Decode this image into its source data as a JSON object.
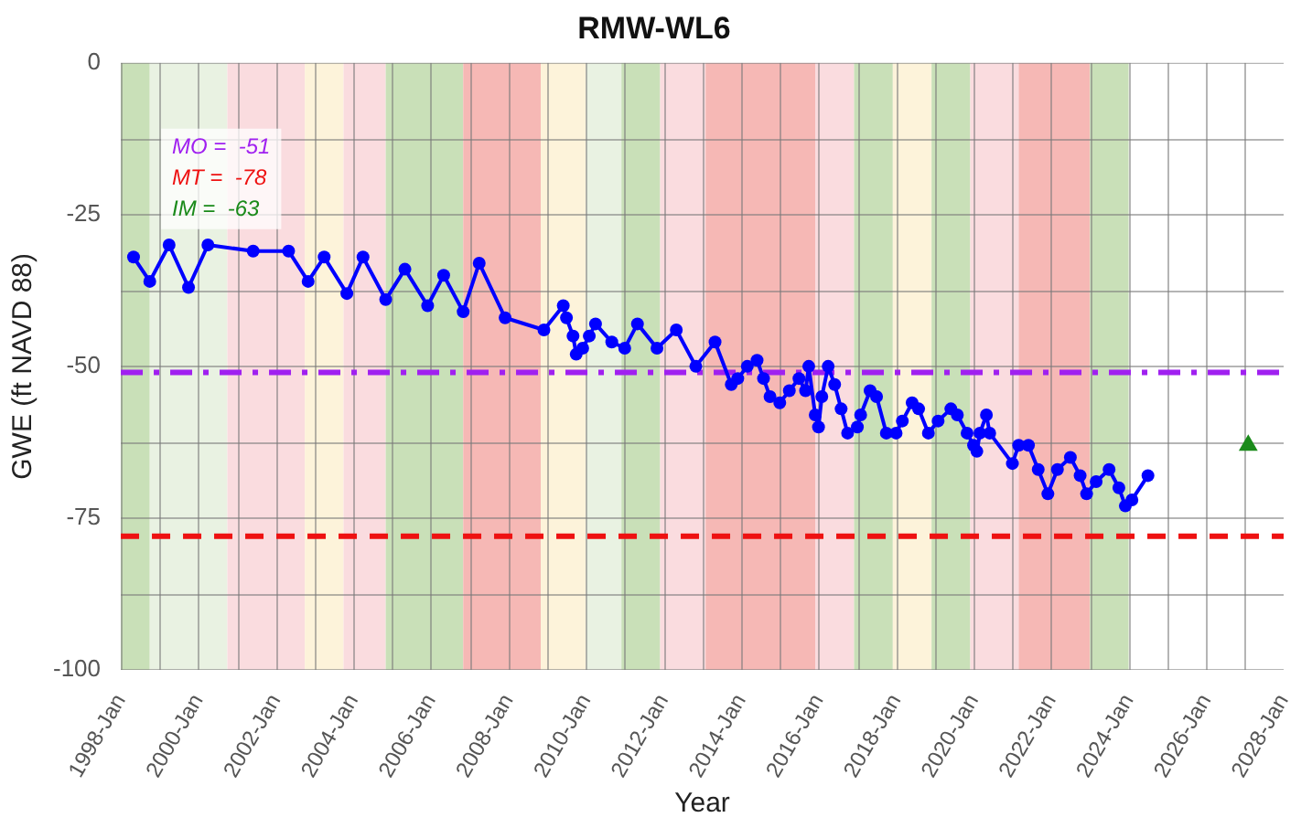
{
  "chart_data": {
    "type": "line",
    "title": "RMW-WL6",
    "xlabel": "Year",
    "ylabel": "GWE (ft NAVD 88)",
    "xlim": [
      "1998-01",
      "2028-01"
    ],
    "xticks": [
      {
        "value": "1998-01",
        "label": "1998-Jan"
      },
      {
        "value": "1999-01",
        "label": null
      },
      {
        "value": "2000-01",
        "label": "2000-Jan"
      },
      {
        "value": "2001-01",
        "label": null
      },
      {
        "value": "2002-01",
        "label": "2002-Jan"
      },
      {
        "value": "2003-01",
        "label": null
      },
      {
        "value": "2004-01",
        "label": "2004-Jan"
      },
      {
        "value": "2005-01",
        "label": null
      },
      {
        "value": "2006-01",
        "label": "2006-Jan"
      },
      {
        "value": "2007-01",
        "label": null
      },
      {
        "value": "2008-01",
        "label": "2008-Jan"
      },
      {
        "value": "2009-01",
        "label": null
      },
      {
        "value": "2010-01",
        "label": "2010-Jan"
      },
      {
        "value": "2011-01",
        "label": null
      },
      {
        "value": "2012-01",
        "label": "2012-Jan"
      },
      {
        "value": "2013-01",
        "label": null
      },
      {
        "value": "2014-01",
        "label": "2014-Jan"
      },
      {
        "value": "2015-01",
        "label": null
      },
      {
        "value": "2016-01",
        "label": "2016-Jan"
      },
      {
        "value": "2017-01",
        "label": null
      },
      {
        "value": "2018-01",
        "label": "2018-Jan"
      },
      {
        "value": "2019-01",
        "label": null
      },
      {
        "value": "2020-01",
        "label": "2020-Jan"
      },
      {
        "value": "2021-01",
        "label": null
      },
      {
        "value": "2022-01",
        "label": "2022-Jan"
      },
      {
        "value": "2023-01",
        "label": null
      },
      {
        "value": "2024-01",
        "label": "2024-Jan"
      },
      {
        "value": "2025-01",
        "label": null
      },
      {
        "value": "2026-01",
        "label": "2026-Jan"
      },
      {
        "value": "2027-01",
        "label": null
      },
      {
        "value": "2028-01",
        "label": "2028-Jan"
      }
    ],
    "ylim": [
      -100,
      0
    ],
    "yticks": [
      -100,
      {
        "value": -87.5,
        "label": null
      },
      -75,
      {
        "value": -62.5,
        "label": null
      },
      -50,
      {
        "value": -37.5,
        "label": null
      },
      -25,
      {
        "value": -12.5,
        "label": null
      },
      0
    ],
    "grid": true,
    "legend": false,
    "marker": "circle",
    "line_style": "solid",
    "series": [
      {
        "color": "#0000ff",
        "x": [
          "1998-05",
          "1998-10",
          "1999-04",
          "1999-10",
          "2000-04",
          "2001-06",
          "2002-05",
          "2002-11",
          "2003-04",
          "2003-11",
          "2004-04",
          "2004-11",
          "2005-05",
          "2005-12",
          "2006-05",
          "2006-11",
          "2007-04",
          "2007-12",
          "2008-12",
          "2009-06",
          "2009-07",
          "2009-09",
          "2009-10",
          "2009-12",
          "2010-02",
          "2010-04",
          "2010-09",
          "2011-01",
          "2011-05",
          "2011-11",
          "2012-05",
          "2012-11",
          "2013-05",
          "2013-10",
          "2013-12",
          "2014-03",
          "2014-06",
          "2014-08",
          "2014-10",
          "2015-01",
          "2015-04",
          "2015-07",
          "2015-09",
          "2015-10",
          "2015-12",
          "2016-01",
          "2016-02",
          "2016-04",
          "2016-06",
          "2016-08",
          "2016-10",
          "2017-01",
          "2017-02",
          "2017-05",
          "2017-07",
          "2017-10",
          "2018-01",
          "2018-03",
          "2018-06",
          "2018-08",
          "2018-11",
          "2019-02",
          "2019-06",
          "2019-08",
          "2019-11",
          "2020-01",
          "2020-02",
          "2020-03",
          "2020-05",
          "2020-06",
          "2021-01",
          "2021-03",
          "2021-06",
          "2021-09",
          "2021-12",
          "2022-03",
          "2022-07",
          "2022-10",
          "2022-12",
          "2023-03",
          "2023-07",
          "2023-10",
          "2023-12",
          "2024-02",
          "2024-07"
        ],
        "values": [
          -32,
          -36,
          -30,
          -37,
          -30,
          -31,
          -31,
          -36,
          -32,
          -38,
          -32,
          -39,
          -34,
          -40,
          -35,
          -41,
          -33,
          -42,
          -44,
          -40,
          -42,
          -45,
          -48,
          -47,
          -45,
          -43,
          -46,
          -47,
          -43,
          -47,
          -44,
          -50,
          -46,
          -53,
          -52,
          -50,
          -49,
          -52,
          -55,
          -56,
          -54,
          -52,
          -54,
          -50,
          -58,
          -60,
          -55,
          -50,
          -53,
          -57,
          -61,
          -60,
          -58,
          -54,
          -55,
          -61,
          -61,
          -59,
          -56,
          -57,
          -61,
          -59,
          -57,
          -58,
          -61,
          -63,
          -64,
          -61,
          -58,
          -61,
          -66,
          -63,
          -63,
          -67,
          -71,
          -67,
          -65,
          -68,
          -71,
          -69,
          -67,
          -70,
          -73,
          -72,
          -68
        ]
      },
      {
        "type": "scatter",
        "marker": "triangle",
        "color": "#1a8a1a",
        "x": [
          "2027-02"
        ],
        "values": [
          -63
        ]
      }
    ],
    "ref_lines": [
      {
        "axis": "y",
        "value": -51,
        "label": "MO =  -51",
        "color": "#a020f0",
        "line_style": "dashdot"
      },
      {
        "axis": "y",
        "value": -78,
        "label": "MT =  -78",
        "color": "#ee1111",
        "line_style": "dashed"
      }
    ],
    "annotations": [
      "IM =  -63"
    ],
    "bands": [
      {
        "axis": "x",
        "from": "1998-01",
        "to": "1998-10",
        "color": "#c9e0b8"
      },
      {
        "axis": "x",
        "from": "1998-10",
        "to": "2000-10",
        "color": "#e9f2e2"
      },
      {
        "axis": "x",
        "from": "2000-10",
        "to": "2002-10",
        "color": "#fadcdf"
      },
      {
        "axis": "x",
        "from": "2002-10",
        "to": "2003-10",
        "color": "#fdf3da"
      },
      {
        "axis": "x",
        "from": "2003-10",
        "to": "2004-11",
        "color": "#fadcdf"
      },
      {
        "axis": "x",
        "from": "2004-11",
        "to": "2006-11",
        "color": "#c9e0b8"
      },
      {
        "axis": "x",
        "from": "2006-11",
        "to": "2008-11",
        "color": "#f6b8b5"
      },
      {
        "axis": "x",
        "from": "2008-11",
        "to": "2010-01",
        "color": "#fdf3da"
      },
      {
        "axis": "x",
        "from": "2010-01",
        "to": "2010-12",
        "color": "#e9f2e2"
      },
      {
        "axis": "x",
        "from": "2010-12",
        "to": "2011-12",
        "color": "#c9e0b8"
      },
      {
        "axis": "x",
        "from": "2011-12",
        "to": "2013-02",
        "color": "#fadcdf"
      },
      {
        "axis": "x",
        "from": "2013-02",
        "to": "2015-12",
        "color": "#f6b8b5"
      },
      {
        "axis": "x",
        "from": "2015-12",
        "to": "2016-12",
        "color": "#fadcdf"
      },
      {
        "axis": "x",
        "from": "2016-12",
        "to": "2017-12",
        "color": "#c9e0b8"
      },
      {
        "axis": "x",
        "from": "2017-12",
        "to": "2018-12",
        "color": "#fdf3da"
      },
      {
        "axis": "x",
        "from": "2018-12",
        "to": "2019-12",
        "color": "#c9e0b8"
      },
      {
        "axis": "x",
        "from": "2019-12",
        "to": "2021-03",
        "color": "#fadcdf"
      },
      {
        "axis": "x",
        "from": "2021-03",
        "to": "2023-01",
        "color": "#f6b8b5"
      },
      {
        "axis": "x",
        "from": "2023-01",
        "to": "2024-01",
        "color": "#c9e0b8"
      }
    ]
  }
}
